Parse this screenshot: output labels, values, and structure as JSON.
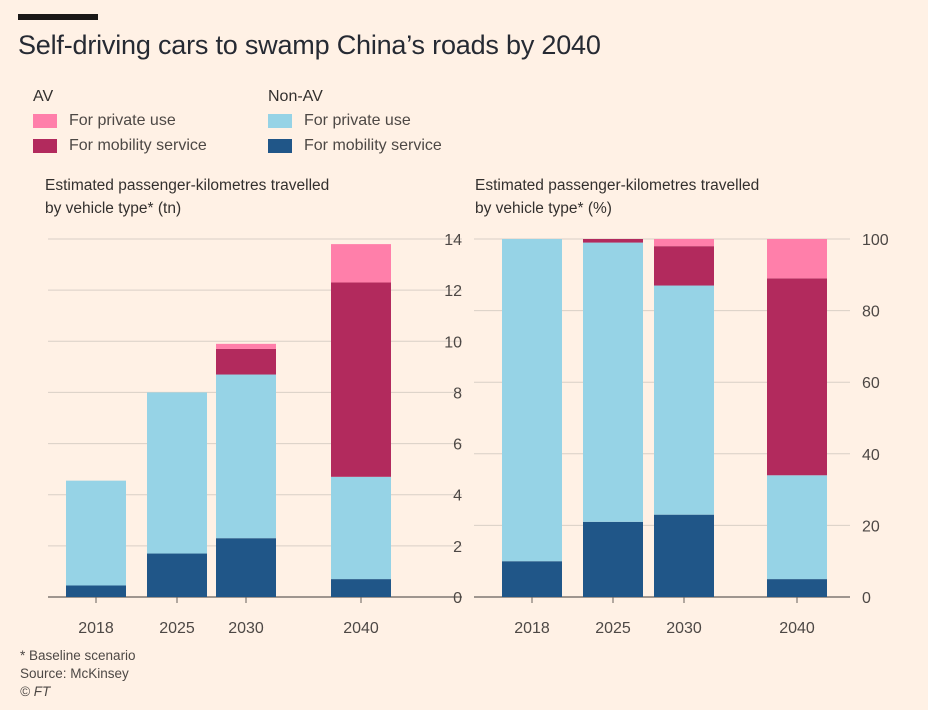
{
  "title": "Self-driving cars to swamp China’s roads by 2040",
  "colors": {
    "av_private": "#ff7faa",
    "av_mobility": "#b22a5d",
    "nonav_private": "#96d3e6",
    "nonav_mobility": "#205688",
    "grid": "#d9cfc6",
    "axis": "#66605c",
    "tick_text": "#4d4845"
  },
  "legend": {
    "av": {
      "title": "AV",
      "private": "For private use",
      "mobility": "For mobility service"
    },
    "nonav": {
      "title": "Non-AV",
      "private": "For private use",
      "mobility": "For mobility service"
    }
  },
  "left_chart": {
    "subtitle_line1": "Estimated passenger-kilometres travelled",
    "subtitle_line2": "by vehicle type* (tn)"
  },
  "right_chart": {
    "subtitle_line1": "Estimated passenger-kilometres travelled",
    "subtitle_line2": "by vehicle type* (%)"
  },
  "chart_data": [
    {
      "type": "bar",
      "stacked": true,
      "title": "Estimated passenger-kilometres travelled by vehicle type* (tn)",
      "categories": [
        "2018",
        "2025",
        "2030",
        "2040"
      ],
      "series": [
        {
          "name": "Non-AV For mobility service",
          "values": [
            0.45,
            1.7,
            2.3,
            0.7
          ]
        },
        {
          "name": "Non-AV For private use",
          "values": [
            4.1,
            6.3,
            6.4,
            4.0
          ]
        },
        {
          "name": "AV For mobility service",
          "values": [
            0.0,
            0.0,
            1.0,
            7.6
          ]
        },
        {
          "name": "AV For private use",
          "values": [
            0.0,
            0.0,
            0.2,
            1.5
          ]
        }
      ],
      "ylim": [
        0,
        14
      ],
      "yticks": [
        0,
        2,
        4,
        6,
        8,
        10,
        12,
        14
      ],
      "y_axis_side": "right",
      "grid": true
    },
    {
      "type": "bar",
      "stacked": true,
      "title": "Estimated passenger-kilometres travelled by vehicle type* (%)",
      "categories": [
        "2018",
        "2025",
        "2030",
        "2040"
      ],
      "series": [
        {
          "name": "Non-AV For mobility service",
          "values": [
            10,
            21,
            23,
            5
          ]
        },
        {
          "name": "Non-AV For private use",
          "values": [
            90,
            78,
            64,
            29
          ]
        },
        {
          "name": "AV For mobility service",
          "values": [
            0,
            1,
            11,
            55
          ]
        },
        {
          "name": "AV For private use",
          "values": [
            0,
            0,
            2,
            11
          ]
        }
      ],
      "ylim": [
        0,
        100
      ],
      "yticks": [
        0,
        20,
        40,
        60,
        80,
        100
      ],
      "y_axis_side": "right",
      "grid": true
    }
  ],
  "footnotes": {
    "note": "* Baseline scenario",
    "source": "Source: McKinsey",
    "credit": "© FT"
  }
}
